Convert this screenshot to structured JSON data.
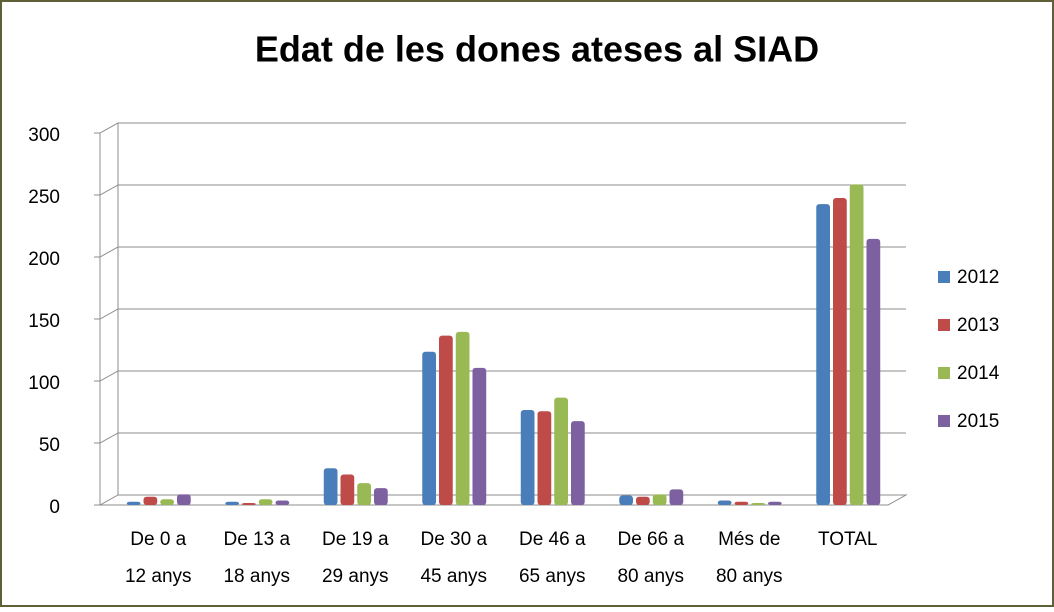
{
  "chart_data": {
    "type": "bar",
    "title": "Edat de les dones ateses al SIAD",
    "categories": [
      "De 0 a 12 anys",
      "De 13 a 18 anys",
      "De 19 a 29 anys",
      "De 30 a 45 anys",
      "De 46 a 65 anys",
      "De 66 a 80 anys",
      "Més de 80 anys",
      "TOTAL"
    ],
    "series": [
      {
        "name": "2012",
        "color": "#4a7ebb",
        "values": [
          1,
          1,
          28,
          122,
          75,
          6,
          2,
          241
        ]
      },
      {
        "name": "2013",
        "color": "#be4b48",
        "values": [
          5,
          0,
          23,
          135,
          74,
          5,
          1,
          246
        ]
      },
      {
        "name": "2014",
        "color": "#98b954",
        "values": [
          3,
          3,
          16,
          138,
          85,
          7,
          0,
          257
        ]
      },
      {
        "name": "2015",
        "color": "#7d60a0",
        "values": [
          7,
          2,
          12,
          109,
          66,
          11,
          1,
          213
        ]
      }
    ],
    "ylim": [
      0,
      300
    ],
    "yticks": [
      0,
      50,
      100,
      150,
      200,
      250,
      300
    ],
    "grid": true,
    "legend": "right"
  }
}
